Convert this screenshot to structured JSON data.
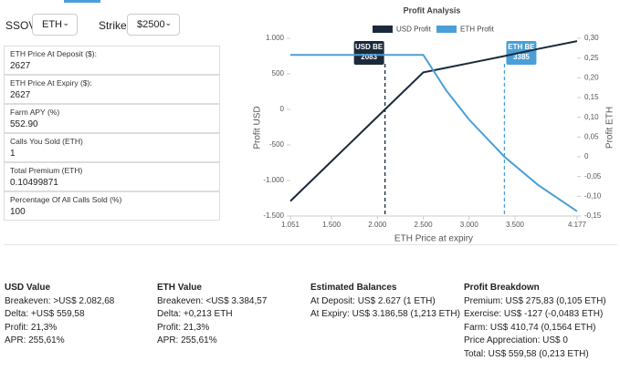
{
  "controls": {
    "asset_label": "SSOV",
    "asset": "ETH",
    "strike_label": "Strike",
    "strike": "$2500"
  },
  "fields": [
    {
      "label": "ETH Price At Deposit ($):",
      "value": "2627"
    },
    {
      "label": "ETH Price At Expiry ($):",
      "value": "2627"
    },
    {
      "label": "Farm APY (%)",
      "value": "552.90"
    },
    {
      "label": "Calls You Sold (ETH)",
      "value": "1"
    },
    {
      "label": "Total Premium (ETH)",
      "value": "0.10499871"
    },
    {
      "label": "Percentage Of All Calls Sold (%)",
      "value": "100"
    }
  ],
  "summary": [
    {
      "title": "USD Value",
      "lines": [
        "Breakeven: >US$ 2.082,68",
        "Delta: +US$ 559,58",
        "Profit: 21,3%",
        "APR: 255,61%"
      ]
    },
    {
      "title": "ETH Value",
      "lines": [
        "Breakeven: <US$ 3.384,57",
        "Delta: +0,213 ETH",
        "Profit: 21,3%",
        "APR: 255,61%"
      ]
    },
    {
      "title": "Estimated Balances",
      "lines": [
        "At Deposit: US$ 2.627 (1 ETH)",
        "At Expiry: US$ 3.186,58 (1,213 ETH)"
      ]
    },
    {
      "title": "Profit Breakdown",
      "lines": [
        "Premium: US$ 275,83 (0,105 ETH)",
        "Exercise: US$ -127 (-0,0483 ETH)",
        "Farm: US$ 410,74 (0,1564 ETH)",
        "Price Appreciation: US$ 0",
        "Total: US$ 559,58 (0,213 ETH)"
      ]
    }
  ],
  "chart_data": {
    "type": "line",
    "title": "Profit Analysis",
    "x_label": "ETH Price at expiry",
    "y_label": "Profit USD",
    "y2_label": "Profit ETH",
    "x": [
      1051,
      1500,
      2000,
      2083,
      2500,
      2750,
      3000,
      3385,
      3750,
      4177
    ],
    "series": [
      {
        "name": "USD Profit",
        "color": "#1b2a3b",
        "values": [
          -1290,
          -729,
          -104,
          0,
          521,
          585,
          650,
          750,
          850,
          960
        ]
      },
      {
        "name": "ETH Profit",
        "color": "#4a9fd8",
        "axis": "y2",
        "values": [
          0.258,
          0.258,
          0.258,
          0.258,
          0.258,
          0.168,
          0.094,
          0,
          -0.071,
          -0.138
        ]
      }
    ],
    "xlim": [
      1051,
      4177
    ],
    "xticks": [
      {
        "value": 1051,
        "label": "1.051"
      },
      {
        "value": 1500,
        "label": "1.500"
      },
      {
        "value": 2000,
        "label": "2.000"
      },
      {
        "value": 2500,
        "label": "2.500"
      },
      {
        "value": 3000,
        "label": "3.000"
      },
      {
        "value": 3500,
        "label": "3.500"
      },
      {
        "value": 4177,
        "label": "4.177"
      }
    ],
    "ylim": [
      -1500,
      1000
    ],
    "yticks": [
      {
        "value": 1000,
        "label": "1.000"
      },
      500,
      0,
      -500,
      {
        "value": -1000,
        "label": "-1.000"
      },
      {
        "value": -1500,
        "label": "-1.500"
      }
    ],
    "y2lim": [
      -0.15,
      0.3
    ],
    "y2ticks": [
      {
        "value": 0.3,
        "label": "0,30"
      },
      {
        "value": 0.25,
        "label": "0,25"
      },
      {
        "value": 0.2,
        "label": "0,20"
      },
      {
        "value": 0.15,
        "label": "0,15"
      },
      {
        "value": 0.1,
        "label": "0,10"
      },
      {
        "value": 0.05,
        "label": "0,05"
      },
      0,
      {
        "value": -0.05,
        "label": "-0,05"
      },
      {
        "value": -0.1,
        "label": "-0,10"
      },
      {
        "value": -0.15,
        "label": "-0,15"
      }
    ],
    "annotations": [
      {
        "label": "USD BE",
        "x": 2083,
        "color": "#1b2a3b",
        "side": "left"
      },
      {
        "label": "ETH BE",
        "x": 3385,
        "color": "#4a9fd8",
        "side": "right"
      }
    ],
    "grid": false,
    "legend": "top"
  }
}
